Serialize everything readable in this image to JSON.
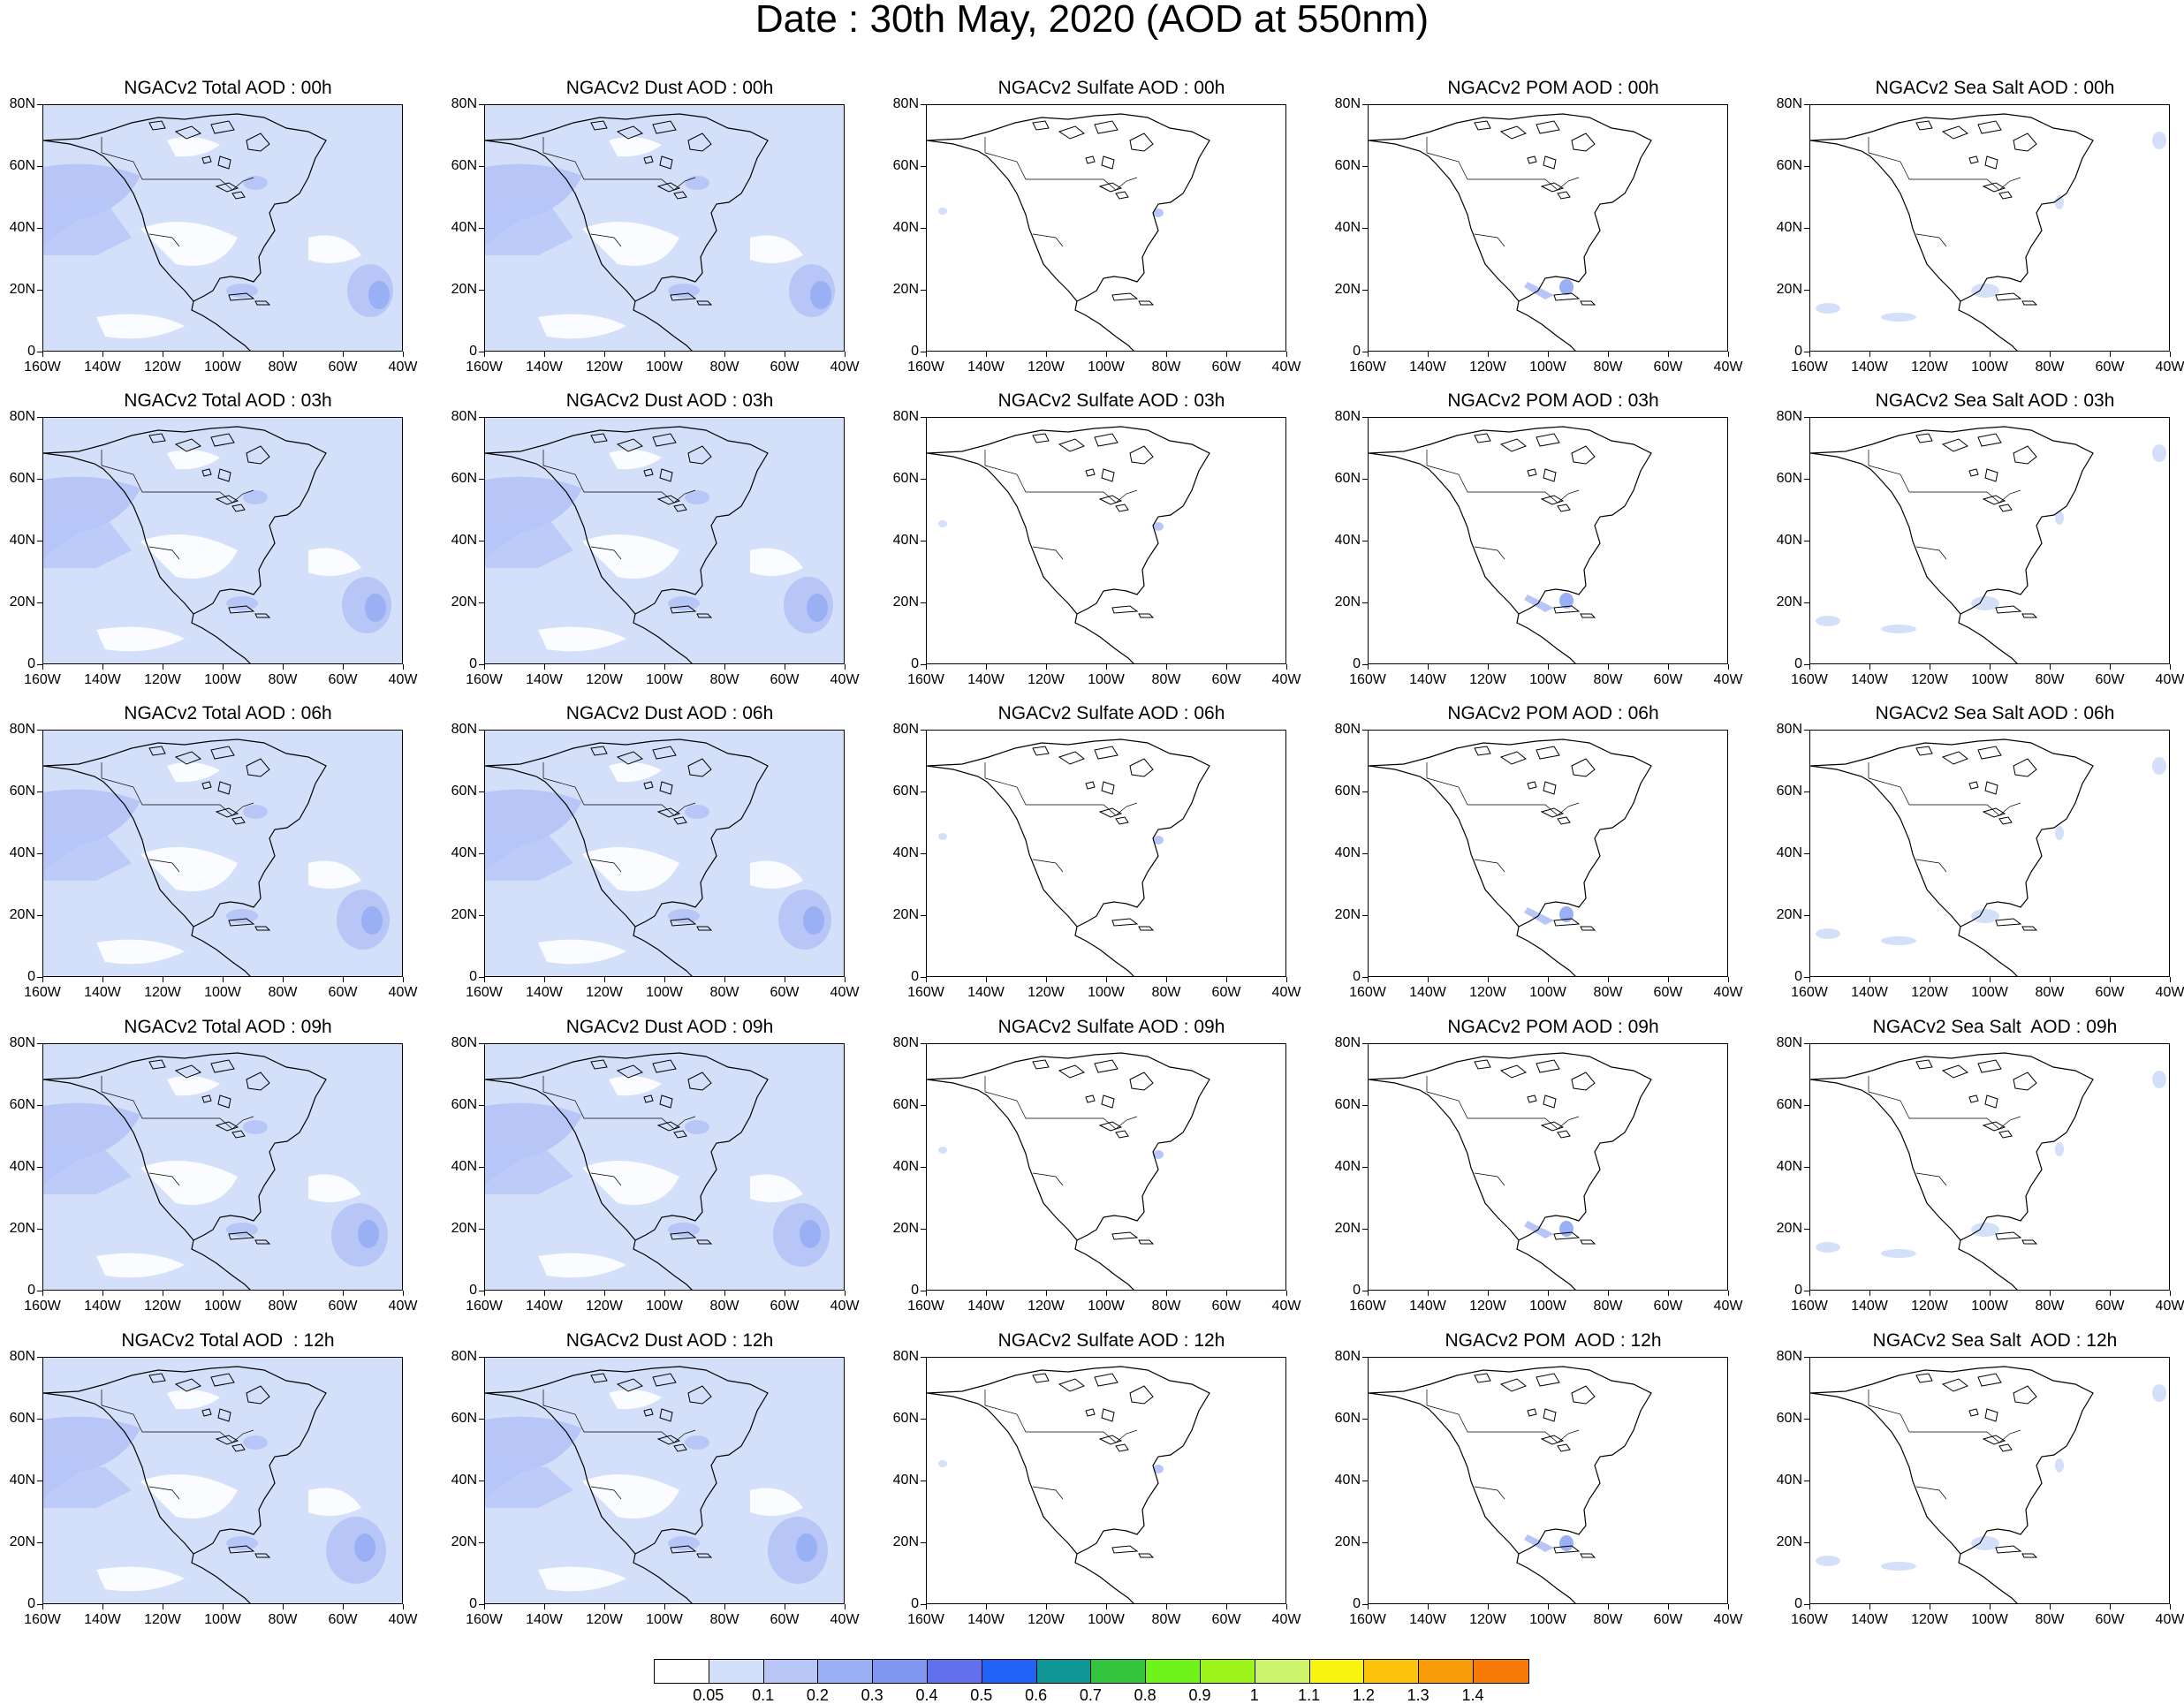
{
  "title": "Date : 30th May, 2020 (AOD at 550nm)",
  "lat_labels": [
    "80N",
    "60N",
    "40N",
    "20N",
    "0"
  ],
  "lon_labels": [
    "160W",
    "140W",
    "120W",
    "100W",
    "80W",
    "60W",
    "40W"
  ],
  "panel_titles": [
    [
      "NGACv2 Total AOD : 00h",
      "NGACv2 Dust AOD : 00h",
      "NGACv2 Sulfate AOD : 00h",
      "NGACv2 POM AOD : 00h",
      "NGACv2 Sea Salt AOD : 00h"
    ],
    [
      "NGACv2 Total AOD : 03h",
      "NGACv2 Dust AOD : 03h",
      "NGACv2 Sulfate AOD : 03h",
      "NGACv2 POM AOD : 03h",
      "NGACv2 Sea Salt AOD : 03h"
    ],
    [
      "NGACv2 Total AOD : 06h",
      "NGACv2 Dust AOD : 06h",
      "NGACv2 Sulfate AOD : 06h",
      "NGACv2 POM AOD : 06h",
      "NGACv2 Sea Salt AOD : 06h"
    ],
    [
      "NGACv2 Total AOD : 09h",
      "NGACv2 Dust AOD : 09h",
      "NGACv2 Sulfate AOD : 09h",
      "NGACv2 POM AOD : 09h",
      "NGACv2 Sea Salt  AOD : 09h"
    ],
    [
      "NGACv2 Total AOD  : 12h",
      "NGACv2 Dust AOD : 12h",
      "NGACv2 Sulfate AOD : 12h",
      "NGACv2 POM  AOD : 12h",
      "NGACv2 Sea Salt  AOD : 12h"
    ]
  ],
  "colorbar": {
    "labels": [
      "0.05",
      "0.1",
      "0.2",
      "0.3",
      "0.4",
      "0.5",
      "0.6",
      "0.7",
      "0.8",
      "0.9",
      "1",
      "1.1",
      "1.2",
      "1.3",
      "1.4"
    ],
    "colors": [
      "#ffffff",
      "#d4dffa",
      "#b7c6f7",
      "#9ab0f4",
      "#7f97f1",
      "#6170ec",
      "#1f62f5",
      "#0f9696",
      "#31c43c",
      "#6ef41b",
      "#9cf419",
      "#cdf46a",
      "#f8f40f",
      "#fbc40b",
      "#f99c0a",
      "#f77a06",
      "#f83d13"
    ]
  },
  "colors": {
    "haze_light": "#d4dffa",
    "haze_mid": "#b7c6f7",
    "haze_strong": "#9ab0f4",
    "coastline": "#000000"
  },
  "icons": [
    "north-america-coastline-map"
  ]
}
